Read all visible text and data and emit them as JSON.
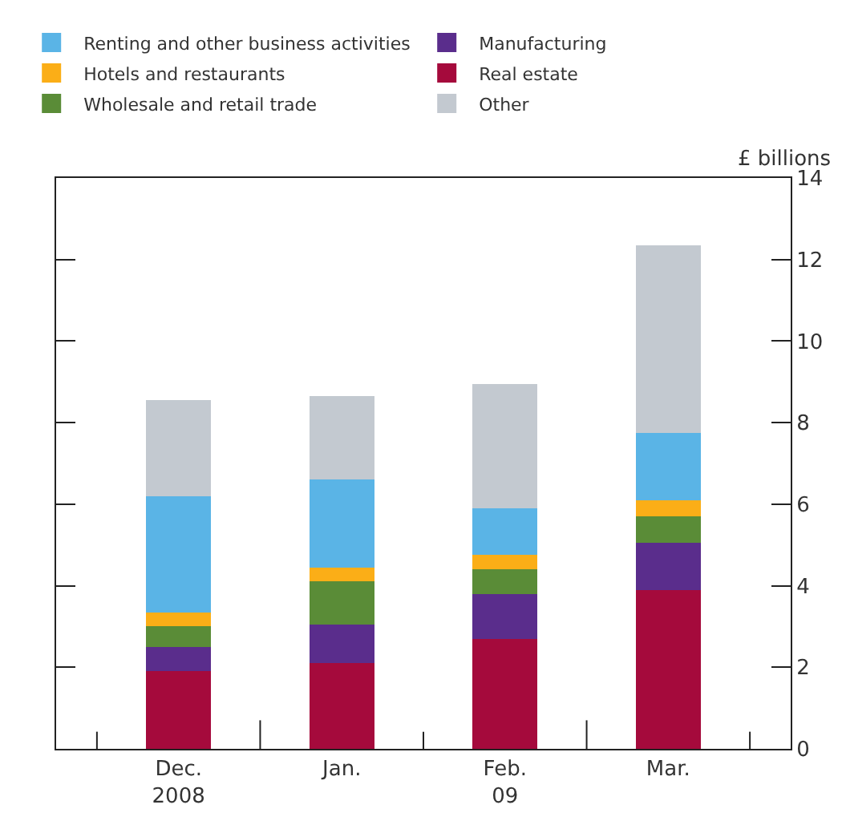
{
  "chart_data": {
    "type": "bar",
    "stacked": true,
    "ylabel": "£ billions",
    "categories": [
      "Dec.\n2008",
      "Jan.",
      "Feb.\n09",
      "Mar."
    ],
    "series": [
      {
        "name": "Real estate",
        "color": "#a50a3c",
        "values": [
          1.9,
          2.1,
          2.7,
          3.9
        ]
      },
      {
        "name": "Manufacturing",
        "color": "#5a2d8c",
        "values": [
          0.6,
          0.95,
          1.1,
          1.15
        ]
      },
      {
        "name": "Wholesale and retail trade",
        "color": "#5a8c37",
        "values": [
          0.5,
          1.05,
          0.6,
          0.65
        ]
      },
      {
        "name": "Hotels and restaurants",
        "color": "#fbae17",
        "values": [
          0.35,
          0.35,
          0.35,
          0.4
        ]
      },
      {
        "name": "Renting and other business activities",
        "color": "#5ab4e6",
        "values": [
          2.85,
          2.15,
          1.15,
          1.65
        ]
      },
      {
        "name": "Other",
        "color": "#c3c9d0",
        "values": [
          2.35,
          2.05,
          3.05,
          4.6
        ]
      }
    ],
    "ylim": [
      0,
      14
    ],
    "yticks": [
      0,
      2,
      4,
      6,
      8,
      10,
      12,
      14
    ],
    "legend": "top",
    "tick_labels": "xy"
  }
}
